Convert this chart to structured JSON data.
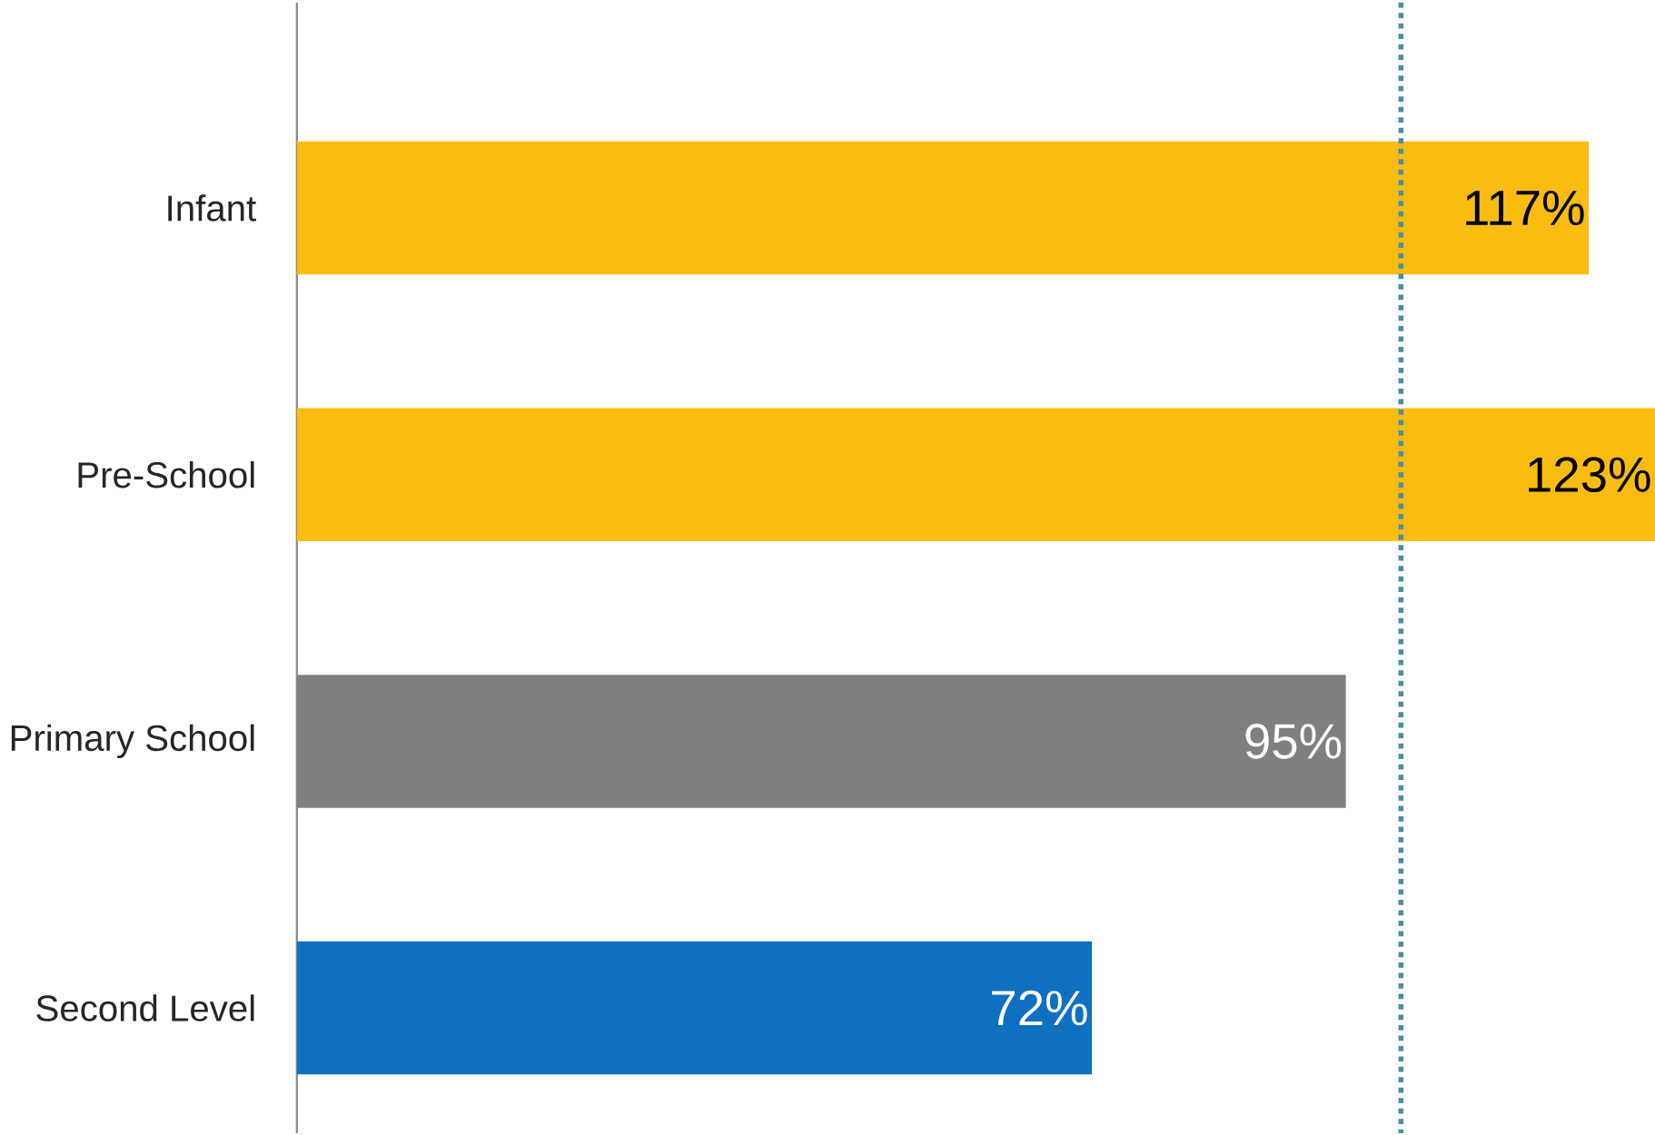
{
  "chart_data": {
    "type": "bar",
    "orientation": "horizontal",
    "categories": [
      "Infant",
      "Pre-School",
      "Primary School",
      "Second Level"
    ],
    "values": [
      117,
      123,
      95,
      72
    ],
    "colors": [
      "#fbbc12",
      "#fbbc12",
      "#7f7f7f",
      "#0f6fc0"
    ],
    "value_labels": [
      "117%",
      "123%",
      "95%",
      "72%"
    ],
    "xlim": [
      0,
      123
    ],
    "ref_lines": [
      {
        "axis": "x",
        "value": 100,
        "color": "#4a8fa0",
        "line_style": "dotted"
      }
    ]
  }
}
